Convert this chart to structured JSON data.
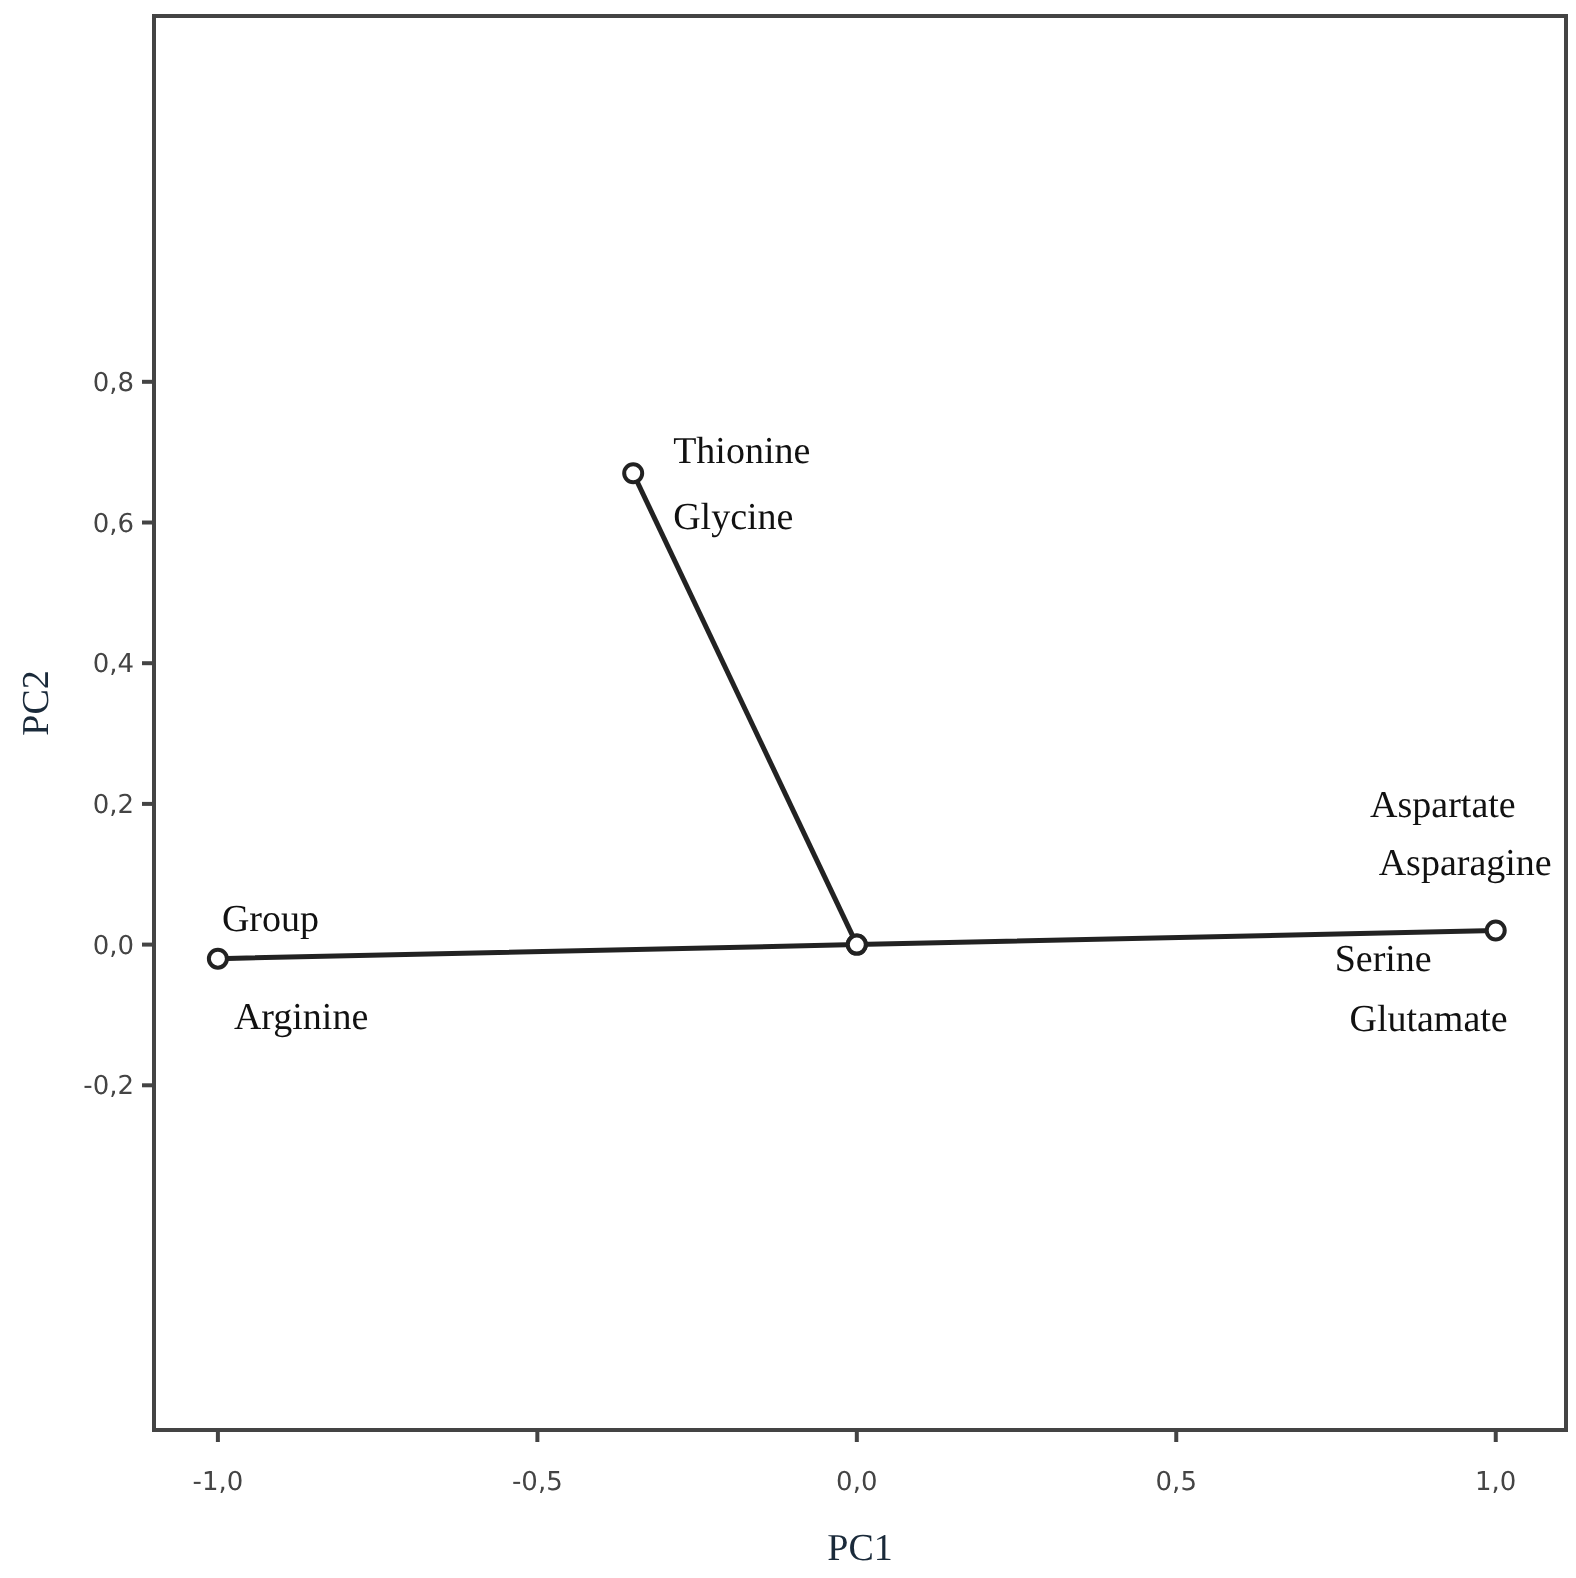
{
  "chart_data": {
    "type": "line",
    "xlabel": "PC1",
    "ylabel": "PC2",
    "xlim": [
      -1.1,
      1.11
    ],
    "ylim": [
      -0.69,
      1.32
    ],
    "xticks": [
      {
        "value": -1,
        "label": "-1,0"
      },
      {
        "value": -0.5,
        "label": "-0,5"
      },
      {
        "value": 0,
        "label": "0,0"
      },
      {
        "value": 0.5,
        "label": "0,5"
      },
      {
        "value": 1,
        "label": "1,0"
      }
    ],
    "yticks": [
      {
        "value": -0.2,
        "label": "-0,2"
      },
      {
        "value": 0,
        "label": "0,0"
      },
      {
        "value": 0.2,
        "label": "0,2"
      },
      {
        "value": 0.4,
        "label": "0,4"
      },
      {
        "value": 0.6,
        "label": "0,6"
      },
      {
        "value": 0.8,
        "label": "0,8"
      }
    ],
    "marker": "circle",
    "series": [
      {
        "color": "#222222",
        "x": [
          -1,
          0,
          1
        ],
        "values": [
          -0.02,
          0,
          0.02
        ]
      },
      {
        "color": "#222222",
        "x": [
          0,
          -0.35
        ],
        "values": [
          0,
          0.67
        ]
      }
    ],
    "annotations": [
      {
        "text": "Group",
        "x": -1,
        "y": -0.02
      },
      {
        "text": "Arginine",
        "x": -1,
        "y": -0.02
      },
      {
        "text": "Thionine",
        "x": -0.35,
        "y": 0.67
      },
      {
        "text": "Glycine",
        "x": -0.35,
        "y": 0.67
      },
      {
        "text": "Aspartate",
        "x": 1,
        "y": 0.02
      },
      {
        "text": "Asparagine",
        "x": 1,
        "y": 0.02
      },
      {
        "text": "Serine",
        "x": 1,
        "y": 0.02
      },
      {
        "text": "Glutamate",
        "x": 1,
        "y": 0.02
      }
    ]
  }
}
